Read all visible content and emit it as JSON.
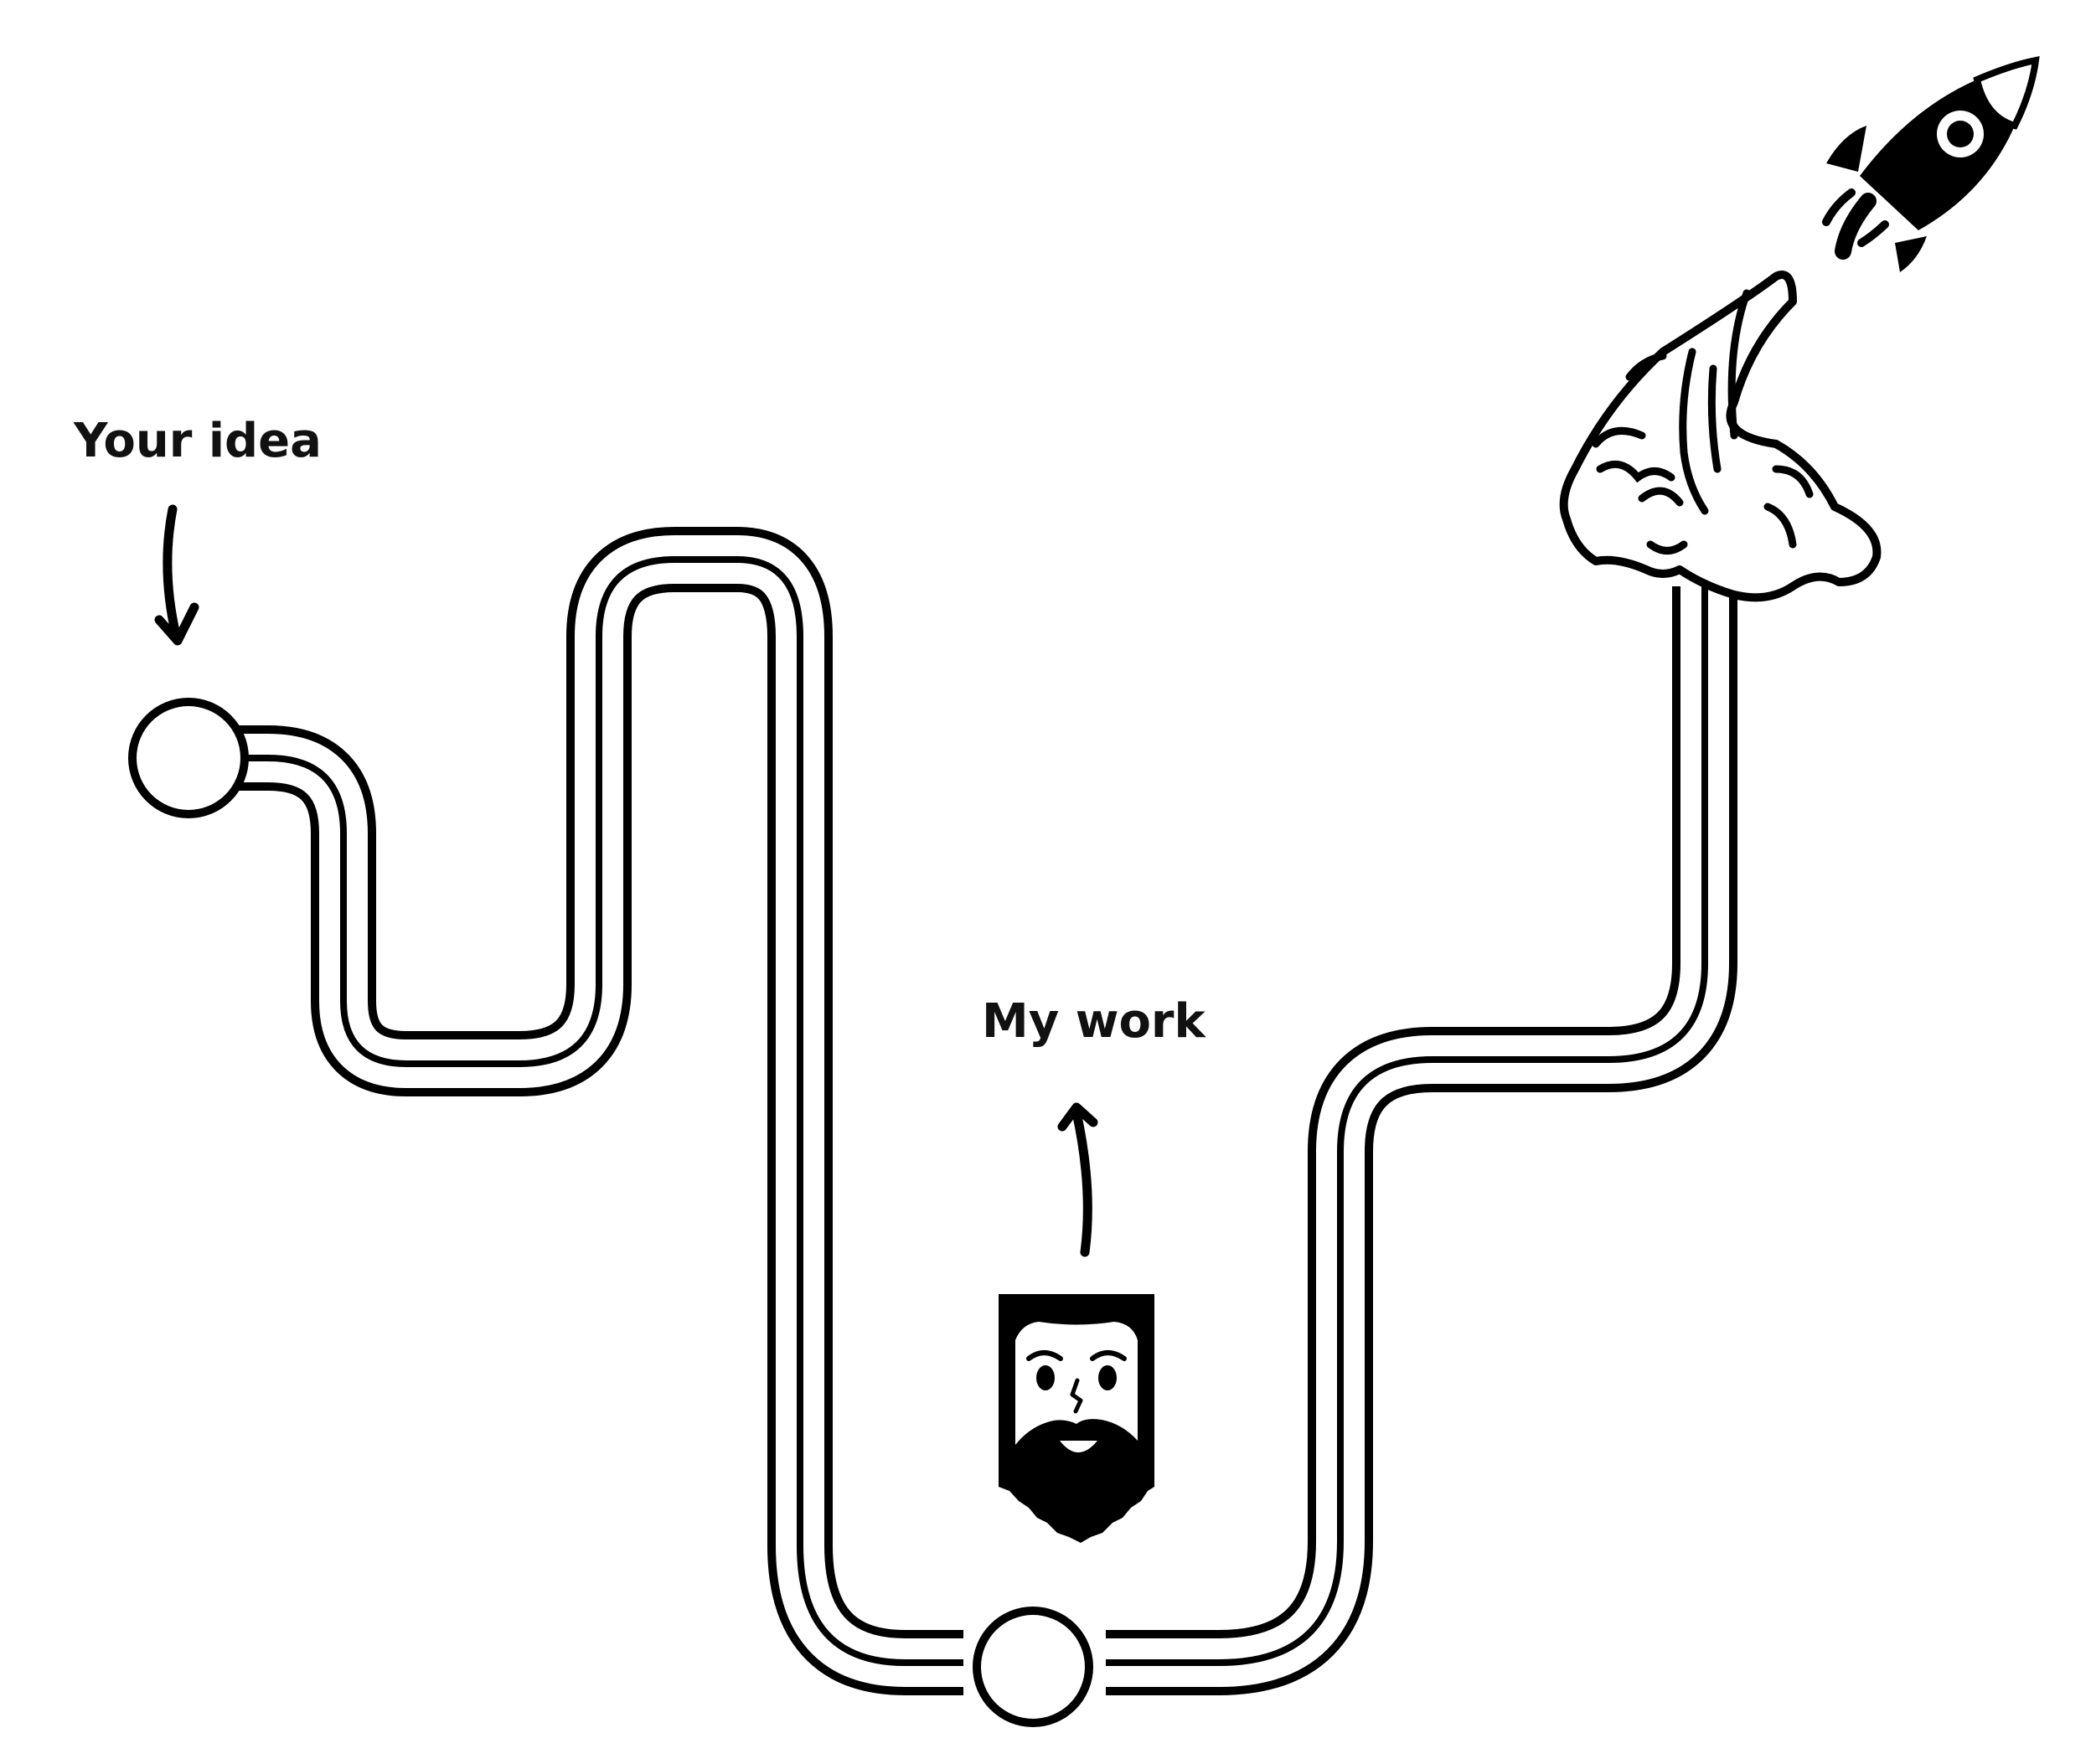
{
  "labels": {
    "your_idea": "Your idea",
    "my_work": "My work"
  },
  "colors": {
    "ink": "#000000",
    "background": "#ffffff"
  },
  "icons": {
    "rocket": "rocket-icon",
    "smoke": "smoke-cloud-icon",
    "portrait": "bearded-man-portrait-icon",
    "start": "start-circle",
    "middle": "middle-circle"
  }
}
